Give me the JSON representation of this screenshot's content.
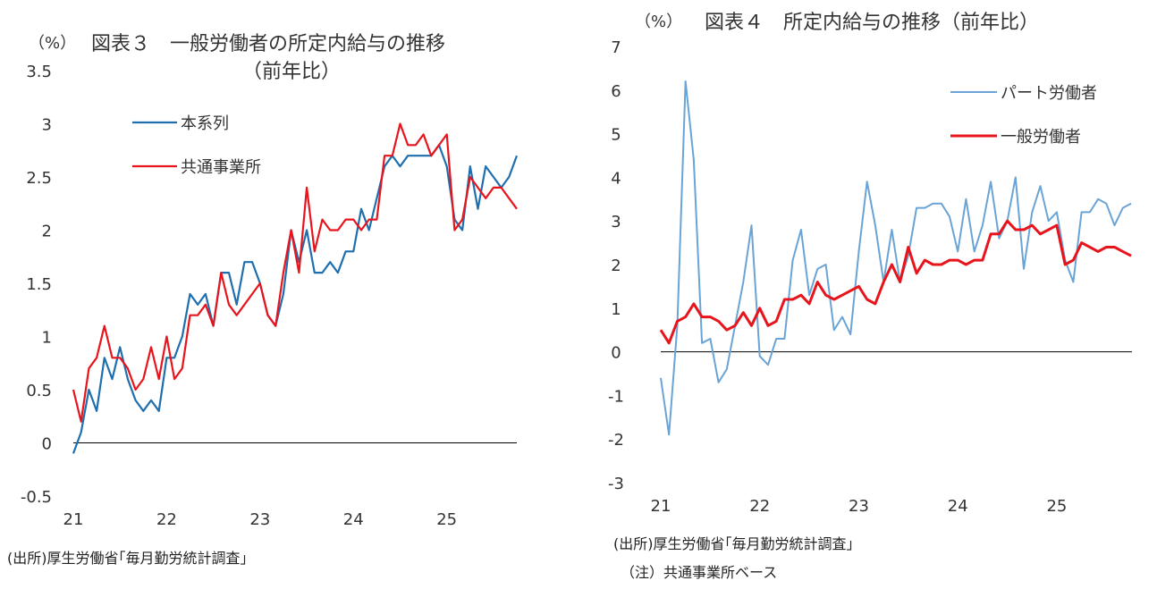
{
  "colors": {
    "honkeiretsu": "#1f6fae",
    "kyotsu": "#e8141c",
    "part": "#6aa3d6",
    "ippan": "#e8141c",
    "axis": "#000000"
  },
  "chart_data": [
    {
      "type": "line",
      "unit_label": "（%）",
      "title": "図表３　一般労働者の所定内給与の推移",
      "subtitle": "（前年比）",
      "ylim": [
        -0.5,
        3.5
      ],
      "y_ticks": [
        "3.5",
        "3",
        "2.5",
        "2",
        "1.5",
        "1",
        "0.5",
        "0",
        "-0.5"
      ],
      "y_tick_values": [
        3.5,
        3,
        2.5,
        2,
        1.5,
        1,
        0.5,
        0,
        -0.5
      ],
      "x_ticks": [
        "21",
        "22",
        "23",
        "24",
        "25"
      ],
      "x_tick_index": [
        0,
        12,
        24,
        36,
        48
      ],
      "legend_position": "upper-left-inside",
      "series": [
        {
          "name": "本系列",
          "values": [
            -0.1,
            0.1,
            0.5,
            0.3,
            0.8,
            0.6,
            0.9,
            0.6,
            0.4,
            0.3,
            0.4,
            0.3,
            0.8,
            0.8,
            1.0,
            1.4,
            1.3,
            1.4,
            1.1,
            1.6,
            1.6,
            1.3,
            1.7,
            1.7,
            1.5,
            1.2,
            1.1,
            1.4,
            2.0,
            1.7,
            2.0,
            1.6,
            1.6,
            1.7,
            1.6,
            1.8,
            1.8,
            2.2,
            2.0,
            2.3,
            2.6,
            2.7,
            2.6,
            2.7,
            2.7,
            2.7,
            2.7,
            2.8,
            2.6,
            2.1,
            2.0,
            2.6,
            2.2,
            2.6,
            2.5,
            2.4,
            2.5,
            2.7
          ]
        },
        {
          "name": "共通事業所",
          "values": [
            0.5,
            0.2,
            0.7,
            0.8,
            1.1,
            0.8,
            0.8,
            0.7,
            0.5,
            0.6,
            0.9,
            0.6,
            1.0,
            0.6,
            0.7,
            1.2,
            1.2,
            1.3,
            1.1,
            1.6,
            1.3,
            1.2,
            1.3,
            1.4,
            1.5,
            1.2,
            1.1,
            1.6,
            2.0,
            1.6,
            2.4,
            1.8,
            2.1,
            2.0,
            2.0,
            2.1,
            2.1,
            2.0,
            2.1,
            2.1,
            2.7,
            2.7,
            3.0,
            2.8,
            2.8,
            2.9,
            2.7,
            2.8,
            2.9,
            2.0,
            2.1,
            2.5,
            2.4,
            2.3,
            2.4,
            2.4,
            2.3,
            2.2
          ]
        }
      ],
      "source": "(出所)厚生労働省｢毎月勤労統計調査」"
    },
    {
      "type": "line",
      "unit_label": "（%）",
      "title": "図表４　所定内給与の推移（前年比）",
      "ylim": [
        -3,
        7
      ],
      "y_ticks": [
        "7",
        "6",
        "5",
        "4",
        "3",
        "2",
        "1",
        "0",
        "-1",
        "-2",
        "-3"
      ],
      "y_tick_values": [
        7,
        6,
        5,
        4,
        3,
        2,
        1,
        0,
        -1,
        -2,
        -3
      ],
      "x_ticks": [
        "21",
        "22",
        "23",
        "24",
        "25"
      ],
      "x_tick_index": [
        0,
        12,
        24,
        36,
        48
      ],
      "legend_position": "upper-right-inside",
      "series": [
        {
          "name": "パート労働者",
          "values": [
            -0.6,
            -1.9,
            0.6,
            6.2,
            4.4,
            0.2,
            0.3,
            -0.7,
            -0.4,
            0.6,
            1.6,
            2.9,
            -0.1,
            -0.3,
            0.3,
            0.3,
            2.1,
            2.8,
            1.3,
            1.9,
            2.0,
            0.5,
            0.8,
            0.4,
            2.3,
            3.9,
            2.9,
            1.6,
            2.8,
            1.6,
            2.2,
            3.3,
            3.3,
            3.4,
            3.4,
            3.1,
            2.3,
            3.5,
            2.3,
            2.9,
            3.9,
            2.6,
            3.0,
            4.0,
            1.9,
            3.2,
            3.8,
            3.0,
            3.2,
            2.1,
            1.6,
            3.2,
            3.2,
            3.5,
            3.4,
            2.9,
            3.3,
            3.4
          ]
        },
        {
          "name": "一般労働者",
          "values": [
            0.5,
            0.2,
            0.7,
            0.8,
            1.1,
            0.8,
            0.8,
            0.7,
            0.5,
            0.6,
            0.9,
            0.6,
            1.0,
            0.6,
            0.7,
            1.2,
            1.2,
            1.3,
            1.1,
            1.6,
            1.3,
            1.2,
            1.3,
            1.4,
            1.5,
            1.2,
            1.1,
            1.6,
            2.0,
            1.6,
            2.4,
            1.8,
            2.1,
            2.0,
            2.0,
            2.1,
            2.1,
            2.0,
            2.1,
            2.1,
            2.7,
            2.7,
            3.0,
            2.8,
            2.8,
            2.9,
            2.7,
            2.8,
            2.9,
            2.0,
            2.1,
            2.5,
            2.4,
            2.3,
            2.4,
            2.4,
            2.3,
            2.2
          ]
        }
      ],
      "source": "(出所)厚生労働省｢毎月勤労統計調査」",
      "note": "（注）共通事業所ベース"
    }
  ]
}
